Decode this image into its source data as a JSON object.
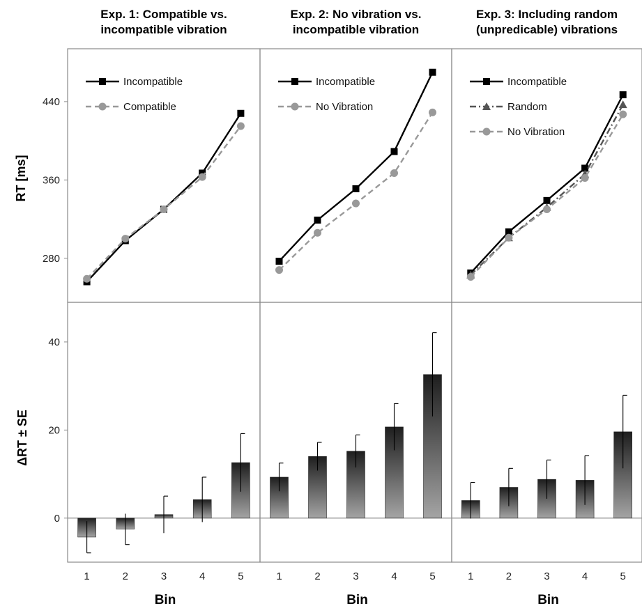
{
  "chart_data": [
    {
      "type": "line",
      "title": "Exp. 1: Compatible vs. incompatible vibration",
      "title_lines": [
        "Exp. 1: Compatible vs.",
        "incompatible vibration"
      ],
      "ylabel": "RT [ms]",
      "x": [
        1,
        2,
        3,
        4,
        5
      ],
      "yticks": [
        280,
        360,
        440
      ],
      "ylim": [
        235,
        494
      ],
      "legend_position": "top-left",
      "series": [
        {
          "name": "Incompatible",
          "values": [
            256,
            298,
            330,
            367,
            428
          ],
          "color": "#000000",
          "marker": "square",
          "dash": "solid"
        },
        {
          "name": "Compatible",
          "values": [
            259,
            300,
            330,
            363,
            415
          ],
          "color": "#999999",
          "marker": "circle",
          "dash": "dashed"
        }
      ]
    },
    {
      "type": "line",
      "title": "Exp. 2: No vibration vs. incompatible vibration",
      "title_lines": [
        "Exp. 2: No vibration vs.",
        "incompatible vibration"
      ],
      "ylabel": "",
      "x": [
        1,
        2,
        3,
        4,
        5
      ],
      "ylim": [
        235,
        494
      ],
      "legend_position": "top-left",
      "series": [
        {
          "name": "Incompatible",
          "values": [
            277,
            319,
            351,
            389,
            470
          ],
          "color": "#000000",
          "marker": "square",
          "dash": "solid"
        },
        {
          "name": "No Vibration",
          "values": [
            268,
            306,
            336,
            367,
            429
          ],
          "color": "#999999",
          "marker": "circle",
          "dash": "dashed"
        }
      ]
    },
    {
      "type": "line",
      "title": "Exp. 3: Including random (unpredicable) vibrations",
      "title_lines": [
        "Exp. 3: Including random",
        "(unpredicable) vibrations"
      ],
      "ylabel": "",
      "x": [
        1,
        2,
        3,
        4,
        5
      ],
      "ylim": [
        235,
        494
      ],
      "legend_position": "top-left",
      "series": [
        {
          "name": "Incompatible",
          "values": [
            265,
            307,
            339,
            372,
            447
          ],
          "color": "#000000",
          "marker": "square",
          "dash": "solid"
        },
        {
          "name": "Random",
          "values": [
            263,
            301,
            332,
            366,
            437
          ],
          "color": "#555555",
          "marker": "triangle",
          "dash": "dashdot"
        },
        {
          "name": "No Vibration",
          "values": [
            261,
            301,
            330,
            362,
            427
          ],
          "color": "#999999",
          "marker": "circle",
          "dash": "dashed"
        }
      ]
    },
    {
      "type": "bar",
      "ylabel": "ΔRT ± SE",
      "xlabel": "Bin",
      "categories": [
        "1",
        "2",
        "3",
        "4",
        "5"
      ],
      "values": [
        -4.3,
        -2.5,
        0.8,
        4.2,
        12.6
      ],
      "errors": [
        3.6,
        3.5,
        4.2,
        5.1,
        6.6
      ],
      "yticks": [
        0,
        20,
        40
      ],
      "ylim": [
        -10,
        49
      ]
    },
    {
      "type": "bar",
      "ylabel": "",
      "xlabel": "Bin",
      "categories": [
        "1",
        "2",
        "3",
        "4",
        "5"
      ],
      "values": [
        9.3,
        14.0,
        15.2,
        20.7,
        32.6
      ],
      "errors": [
        3.2,
        3.2,
        3.7,
        5.3,
        9.5
      ],
      "ylim": [
        -10,
        49
      ]
    },
    {
      "type": "bar",
      "ylabel": "",
      "xlabel": "Bin",
      "categories": [
        "1",
        "2",
        "3",
        "4",
        "5"
      ],
      "values": [
        4.0,
        7.0,
        8.8,
        8.6,
        19.6
      ],
      "errors": [
        4.1,
        4.3,
        4.4,
        5.6,
        8.3
      ],
      "ylim": [
        -10,
        49
      ]
    }
  ]
}
